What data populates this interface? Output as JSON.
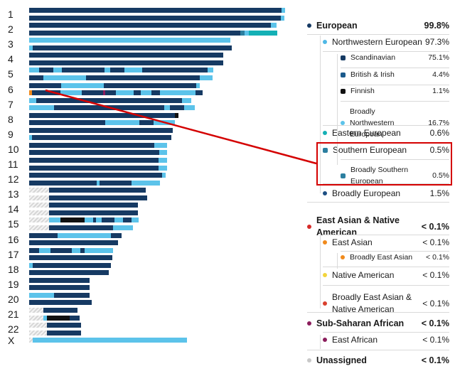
{
  "chromosome_labels": [
    "1",
    "2",
    "3",
    "4",
    "5",
    "6",
    "7",
    "8",
    "9",
    "10",
    "11",
    "12",
    "13",
    "14",
    "15",
    "16",
    "17",
    "18",
    "19",
    "20",
    "21",
    "22",
    "X"
  ],
  "colors": {
    "european": "#163a63",
    "northwestern": "#4fb8e6",
    "scandinavian": "#163a63",
    "british_irish": "#1b5a8c",
    "finnish": "#111111",
    "broadly_nw": "#5cc3ea",
    "eastern": "#14b0b5",
    "southern": "#2c7fa0",
    "broadly_european": "#1d4f83",
    "east_asian_native": "#d62a28",
    "east_asian": "#f08a1c",
    "native_american": "#f2d43c",
    "broadly_ea_na": "#d9402e",
    "subsaharan": "#8b1d5c",
    "east_african": "#8b1d5c",
    "unassigned": "#c8c8c8",
    "highlight": "#d40000",
    "hatch": "#cfcfcf"
  },
  "legend": [
    {
      "label": "European",
      "pct": "99.8%",
      "level": 0,
      "color": "#163a63"
    },
    {
      "label": "Northwestern European",
      "pct": "97.3%",
      "level": 1,
      "color": "#4fb8e6"
    },
    {
      "label": "Scandinavian",
      "pct": "75.1%",
      "level": 2,
      "color": "#163a63",
      "icon": "box"
    },
    {
      "label": "British & Irish",
      "pct": "4.4%",
      "level": 2,
      "color": "#1b5a8c",
      "icon": "box"
    },
    {
      "label": "Finnish",
      "pct": "1.1%",
      "level": 2,
      "color": "#111111",
      "icon": "box"
    },
    {
      "label": "Broadly Northwestern European",
      "pct": "16.7%",
      "level": 2,
      "color": "#5cc3ea",
      "icon": "dot"
    },
    {
      "label": "Eastern European",
      "pct": "0.6%",
      "level": 1,
      "color": "#14b0b5"
    },
    {
      "label": "Southern European",
      "pct": "0.5%",
      "level": 1,
      "color": "#2c7fa0",
      "icon": "box"
    },
    {
      "label": "Broadly Southern European",
      "pct": "0.5%",
      "level": 2,
      "color": "#2c7fa0",
      "icon": "box"
    },
    {
      "label": "Broadly European",
      "pct": "1.5%",
      "level": 1,
      "color": "#1d4f83"
    },
    {
      "label": "East Asian & Native American",
      "pct": "< 0.1%",
      "level": 0,
      "color": "#d62a28"
    },
    {
      "label": "East Asian",
      "pct": "< 0.1%",
      "level": 1,
      "color": "#f08a1c"
    },
    {
      "label": "Broadly East Asian",
      "pct": "< 0.1%",
      "level": 2,
      "color": "#f08a1c"
    },
    {
      "label": "Native American",
      "pct": "< 0.1%",
      "level": 1,
      "color": "#f2d43c"
    },
    {
      "label": "Broadly East Asian & Native American",
      "pct": "< 0.1%",
      "level": 1,
      "color": "#d9402e"
    },
    {
      "label": "Sub-Saharan African",
      "pct": "< 0.1%",
      "level": 0,
      "color": "#8b1d5c"
    },
    {
      "label": "East African",
      "pct": "< 0.1%",
      "level": 1,
      "color": "#8b1d5c"
    },
    {
      "label": "Unassigned",
      "pct": "< 0.1%",
      "level": 0,
      "color": "#c8c8c8"
    }
  ],
  "strands": [
    {
      "chr": "1",
      "segs": [
        [
          "#163a63",
          355
        ],
        [
          "#5cc3ea",
          5
        ]
      ]
    },
    {
      "chr": "1",
      "segs": [
        [
          "#163a63",
          354
        ],
        [
          "#5cc3ea",
          5
        ]
      ]
    },
    {
      "chr": "2",
      "segs": [
        [
          "#163a63",
          340
        ],
        [
          "#5cc3ea",
          8
        ]
      ]
    },
    {
      "chr": "2",
      "segs": [
        [
          "#163a63",
          297
        ],
        [
          "#2c7fa0",
          6
        ],
        [
          "#5cc3ea",
          6
        ],
        [
          "#14b0b5",
          40
        ]
      ]
    },
    {
      "chr": "3",
      "segs": [
        [
          "#5cc3ea",
          283
        ]
      ]
    },
    {
      "chr": "3",
      "segs": [
        [
          "#5cc3ea",
          5
        ],
        [
          "#163a63",
          280
        ]
      ]
    },
    {
      "chr": "4",
      "segs": [
        [
          "#163a63",
          273
        ]
      ]
    },
    {
      "chr": "4",
      "segs": [
        [
          "#163a63",
          273
        ]
      ]
    },
    {
      "chr": "5",
      "segs": [
        [
          "#5cc3ea",
          14
        ],
        [
          "#163a63",
          20
        ],
        [
          "#5cc3ea",
          12
        ],
        [
          "#163a63",
          60
        ],
        [
          "#5cc3ea",
          8
        ],
        [
          "#163a63",
          20
        ],
        [
          "#5cc3ea",
          25
        ],
        [
          "#163a63",
          92
        ],
        [
          "#5cc3ea",
          8
        ]
      ]
    },
    {
      "chr": "5",
      "segs": [
        [
          "#163a63",
          20
        ],
        [
          "#5cc3ea",
          60
        ],
        [
          "#163a63",
          160
        ],
        [
          "#5cc3ea",
          18
        ]
      ]
    },
    {
      "chr": "6",
      "segs": [
        [
          "#163a63",
          45
        ],
        [
          "#5cc3ea",
          60
        ],
        [
          "#163a63",
          130
        ],
        [
          "#5cc3ea",
          5
        ]
      ]
    },
    {
      "chr": "6",
      "segs": [
        [
          "#f08a1c",
          4
        ],
        [
          "#163a63",
          40
        ],
        [
          "#5cc3ea",
          30
        ],
        [
          "#163a63",
          30
        ],
        [
          "#8b1d5c",
          3
        ],
        [
          "#163a63",
          15
        ],
        [
          "#5cc3ea",
          25
        ],
        [
          "#163a63",
          10
        ],
        [
          "#5cc3ea",
          15
        ],
        [
          "#163a63",
          12
        ],
        [
          "#5cc3ea",
          50
        ],
        [
          "#163a63",
          10
        ]
      ]
    },
    {
      "chr": "7",
      "segs": [
        [
          "#5cc3ea",
          10
        ],
        [
          "#163a63",
          205
        ],
        [
          "#5cc3ea",
          13
        ]
      ]
    },
    {
      "chr": "7",
      "segs": [
        [
          "#5cc3ea",
          35
        ],
        [
          "#163a63",
          155
        ],
        [
          "#5cc3ea",
          8
        ],
        [
          "#163a63",
          20
        ],
        [
          "#5cc3ea",
          15
        ]
      ]
    },
    {
      "chr": "8",
      "segs": [
        [
          "#163a63",
          205
        ],
        [
          "#111111",
          5
        ]
      ]
    },
    {
      "chr": "8",
      "segs": [
        [
          "#163a63",
          107
        ],
        [
          "#5cc3ea",
          48
        ],
        [
          "#163a63",
          20
        ],
        [
          "#5cc3ea",
          30
        ]
      ]
    },
    {
      "chr": "9",
      "segs": [
        [
          "#163a63",
          202
        ]
      ]
    },
    {
      "chr": "9",
      "segs": [
        [
          "#5cc3ea",
          4
        ],
        [
          "#163a63",
          196
        ]
      ]
    },
    {
      "chr": "10",
      "segs": [
        [
          "#163a63",
          176
        ],
        [
          "#5cc3ea",
          18
        ]
      ]
    },
    {
      "chr": "10",
      "segs": [
        [
          "#163a63",
          183
        ],
        [
          "#5cc3ea",
          11
        ]
      ]
    },
    {
      "chr": "11",
      "segs": [
        [
          "#163a63",
          182
        ],
        [
          "#5cc3ea",
          12
        ]
      ]
    },
    {
      "chr": "11",
      "segs": [
        [
          "#163a63",
          182
        ],
        [
          "#5cc3ea",
          12
        ]
      ]
    },
    {
      "chr": "12",
      "segs": [
        [
          "#163a63",
          187
        ],
        [
          "#5cc3ea",
          5
        ]
      ]
    },
    {
      "chr": "12",
      "segs": [
        [
          "#163a63",
          95
        ],
        [
          "#5cc3ea",
          4
        ],
        [
          "#163a63",
          45
        ],
        [
          "#5cc3ea",
          40
        ],
        [
          "#163a63",
          0
        ]
      ]
    },
    {
      "chr": "13",
      "segs": [
        [
          "#cfcfcf",
          28
        ],
        [
          "#163a63",
          136
        ]
      ]
    },
    {
      "chr": "13",
      "segs": [
        [
          "#cfcfcf",
          28
        ],
        [
          "#163a63",
          138
        ]
      ]
    },
    {
      "chr": "14",
      "segs": [
        [
          "#cfcfcf",
          28
        ],
        [
          "#163a63",
          125
        ]
      ]
    },
    {
      "chr": "14",
      "segs": [
        [
          "#cfcfcf",
          28
        ],
        [
          "#163a63",
          125
        ]
      ]
    },
    {
      "chr": "15",
      "segs": [
        [
          "#cfcfcf",
          28
        ],
        [
          "#5cc3ea",
          16
        ],
        [
          "#111111",
          34
        ],
        [
          "#5cc3ea",
          12
        ],
        [
          "#163a63",
          4
        ],
        [
          "#5cc3ea",
          8
        ],
        [
          "#163a63",
          18
        ],
        [
          "#5cc3ea",
          12
        ],
        [
          "#163a63",
          12
        ],
        [
          "#5cc3ea",
          10
        ]
      ]
    },
    {
      "chr": "15",
      "segs": [
        [
          "#cfcfcf",
          28
        ],
        [
          "#163a63",
          90
        ],
        [
          "#5cc3ea",
          28
        ]
      ]
    },
    {
      "chr": "16",
      "segs": [
        [
          "#163a63",
          40
        ],
        [
          "#5cc3ea",
          75
        ],
        [
          "#163a63",
          15
        ]
      ]
    },
    {
      "chr": "16",
      "segs": [
        [
          "#163a63",
          125
        ]
      ]
    },
    {
      "chr": "17",
      "segs": [
        [
          "#163a63",
          14
        ],
        [
          "#5cc3ea",
          16
        ],
        [
          "#163a63",
          30
        ],
        [
          "#5cc3ea",
          12
        ],
        [
          "#163a63",
          6
        ],
        [
          "#5cc3ea",
          40
        ]
      ]
    },
    {
      "chr": "17",
      "segs": [
        [
          "#163a63",
          117
        ]
      ]
    },
    {
      "chr": "18",
      "segs": [
        [
          "#5cc3ea",
          5
        ],
        [
          "#163a63",
          110
        ]
      ]
    },
    {
      "chr": "18",
      "segs": [
        [
          "#163a63",
          112
        ]
      ]
    },
    {
      "chr": "19",
      "segs": [
        [
          "#163a63",
          85
        ]
      ]
    },
    {
      "chr": "19",
      "segs": [
        [
          "#163a63",
          85
        ]
      ]
    },
    {
      "chr": "20",
      "segs": [
        [
          "#5cc3ea",
          35
        ],
        [
          "#163a63",
          50
        ]
      ]
    },
    {
      "chr": "20",
      "segs": [
        [
          "#163a63",
          88
        ]
      ]
    },
    {
      "chr": "21",
      "segs": [
        [
          "#cfcfcf",
          20
        ],
        [
          "#163a63",
          48
        ]
      ]
    },
    {
      "chr": "21",
      "segs": [
        [
          "#cfcfcf",
          20
        ],
        [
          "#5cc3ea",
          5
        ],
        [
          "#111111",
          32
        ],
        [
          "#163a63",
          14
        ]
      ]
    },
    {
      "chr": "22",
      "segs": [
        [
          "#cfcfcf",
          25
        ],
        [
          "#163a63",
          48
        ]
      ]
    },
    {
      "chr": "22",
      "segs": [
        [
          "#cfcfcf",
          25
        ],
        [
          "#163a63",
          48
        ]
      ]
    },
    {
      "chr": "X",
      "segs": [
        [
          "#cfcfcf",
          5
        ],
        [
          "#5cc3ea",
          217
        ]
      ]
    }
  ]
}
